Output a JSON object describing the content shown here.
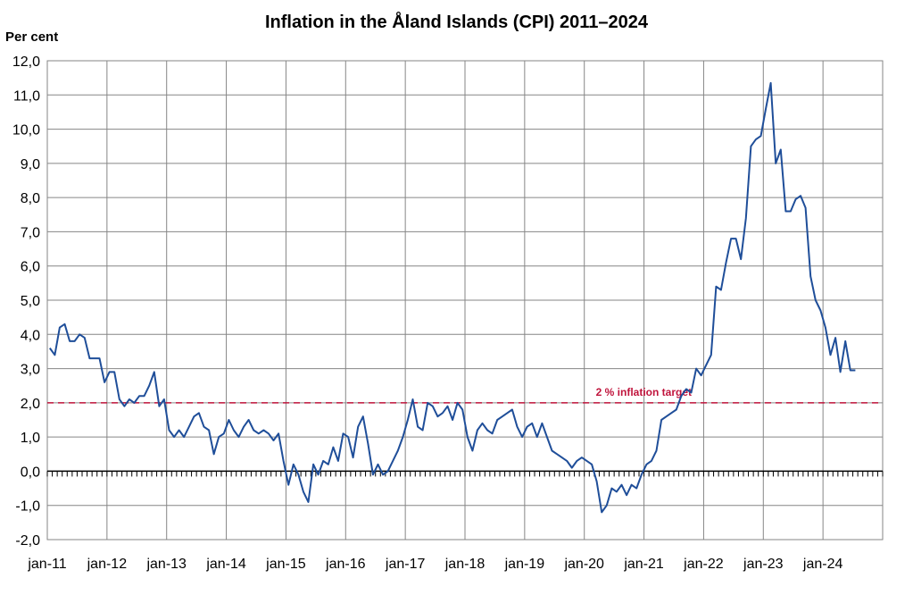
{
  "chart_data": {
    "type": "line",
    "title": "Inflation in the Åland Islands (CPI) 2011–2024",
    "ylabel": "Per cent",
    "ylim": [
      -2.0,
      12.0
    ],
    "y_ticks": [
      "-2,0",
      "-1,0",
      "0,0",
      "1,0",
      "2,0",
      "3,0",
      "4,0",
      "5,0",
      "6,0",
      "7,0",
      "8,0",
      "9,0",
      "10,0",
      "11,0",
      "12,0"
    ],
    "x_ticks": [
      "jan-11",
      "jan-12",
      "jan-13",
      "jan-14",
      "jan-15",
      "jan-16",
      "jan-17",
      "jan-18",
      "jan-19",
      "jan-20",
      "jan-21",
      "jan-22",
      "jan-23",
      "jan-24"
    ],
    "x_start": "2011-01",
    "grid": true,
    "line_color": "#1f4e99",
    "target_color": "#c0143c",
    "reference_line": {
      "value": 2.0,
      "label": "2 % inflation target"
    },
    "series": [
      {
        "values": [
          3.6,
          3.4,
          4.2,
          4.3,
          3.8,
          3.8,
          4.0,
          3.9,
          3.3,
          3.3,
          3.3,
          2.6,
          2.9,
          2.9,
          2.1,
          1.9,
          2.1,
          2.0,
          2.2,
          2.2,
          2.5,
          2.9,
          1.9,
          2.1,
          1.2,
          1.0,
          1.2,
          1.0,
          1.3,
          1.6,
          1.7,
          1.3,
          1.2,
          0.5,
          1.0,
          1.1,
          1.5,
          1.2,
          1.0,
          1.3,
          1.5,
          1.2,
          1.1,
          1.2,
          1.1,
          0.9,
          1.1,
          0.3,
          -0.4,
          0.2,
          -0.1,
          -0.6,
          -0.9,
          0.2,
          -0.1,
          0.3,
          0.2,
          0.7,
          0.3,
          1.1,
          1.0,
          0.4,
          1.3,
          1.6,
          0.8,
          -0.1,
          0.2,
          -0.1,
          0.0,
          0.3,
          0.6,
          1.0,
          1.5,
          2.1,
          1.3,
          1.2,
          2.0,
          1.9,
          1.6,
          1.7,
          1.9,
          1.5,
          2.0,
          1.8,
          1.0,
          0.6,
          1.2,
          1.4,
          1.2,
          1.1,
          1.5,
          1.6,
          1.7,
          1.8,
          1.3,
          1.0,
          1.3,
          1.4,
          1.0,
          1.4,
          1.0,
          0.6,
          0.5,
          0.4,
          0.3,
          0.1,
          0.3,
          0.4,
          0.3,
          0.2,
          -0.3,
          -1.2,
          -1.0,
          -0.5,
          -0.6,
          -0.4,
          -0.7,
          -0.4,
          -0.5,
          -0.1,
          0.2,
          0.3,
          0.6,
          1.5,
          1.6,
          1.7,
          1.8,
          2.2,
          2.4,
          2.3,
          3.0,
          2.8,
          3.1,
          3.4,
          5.4,
          5.3,
          6.1,
          6.8,
          6.8,
          6.2,
          7.4,
          9.5,
          9.7,
          9.8,
          10.6,
          11.35,
          9.0,
          9.4,
          7.6,
          7.6,
          7.95,
          8.05,
          7.7,
          5.7,
          5.0,
          4.7,
          4.2,
          3.4,
          3.9,
          2.9,
          3.8,
          2.95,
          2.95
        ]
      }
    ]
  }
}
